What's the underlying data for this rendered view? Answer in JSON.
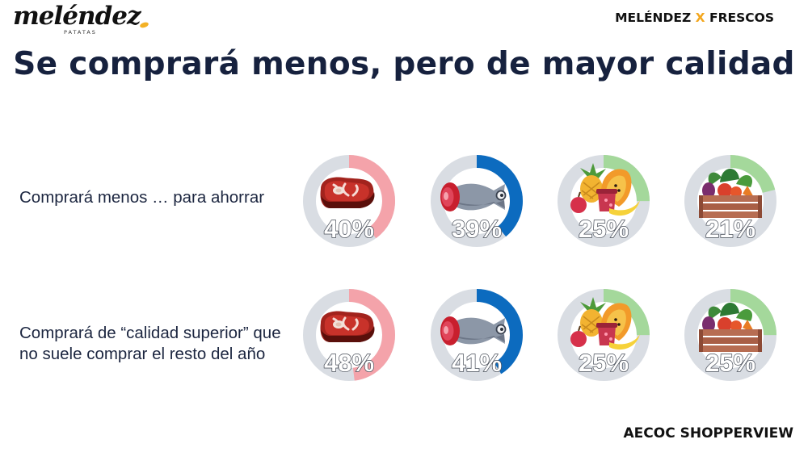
{
  "header": {
    "logo": "meléndez",
    "logo_sub": "PATATAS",
    "cobrand_left": "MELÉNDEZ",
    "cobrand_x": "X",
    "cobrand_right": "FRESCOS"
  },
  "title": "Se comprará menos, pero de mayor calidad",
  "footer": "AECOC SHOPPERVIEW",
  "colors": {
    "track": "#d9dde3",
    "meat": "#f4a3aa",
    "fish": "#0c6bbf",
    "fruit": "#a4d89b",
    "vegetables": "#a4d89b"
  },
  "chart_data": {
    "type": "donut",
    "categories": [
      "meat-icon",
      "fish-icon",
      "fruit-icon",
      "vegetables-icon"
    ],
    "series": [
      {
        "name": "Comprará menos … para ahorrar",
        "values": [
          40,
          39,
          25,
          21
        ],
        "labels": [
          "40%",
          "39%",
          "25%",
          "21%"
        ]
      },
      {
        "name": "Comprará de “calidad superior” que no suele comprar el resto del año",
        "values": [
          48,
          41,
          25,
          25
        ],
        "labels": [
          "48%",
          "41%",
          "25%",
          "25%"
        ]
      }
    ]
  }
}
